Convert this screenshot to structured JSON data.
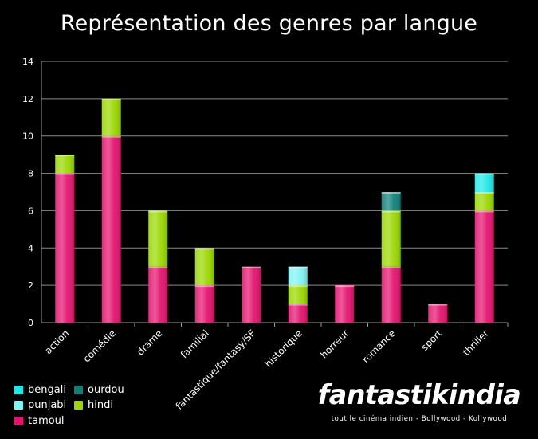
{
  "title": "Représentation des genres par langue",
  "chart_data": {
    "type": "bar",
    "stacked": true,
    "categories": [
      "action",
      "comédie",
      "drame",
      "familial",
      "fantastique/fantasy/SF",
      "historique",
      "horreur",
      "romance",
      "sport",
      "thriller"
    ],
    "series": [
      {
        "name": "tamoul",
        "color": "#e5126f",
        "values": [
          8,
          10,
          3,
          2,
          3,
          1,
          2,
          3,
          1,
          6
        ]
      },
      {
        "name": "hindi",
        "color": "#9ad800",
        "values": [
          1,
          2,
          3,
          2,
          0,
          1,
          0,
          3,
          0,
          1
        ]
      },
      {
        "name": "punjabi",
        "color": "#7ff4f4",
        "values": [
          0,
          0,
          0,
          0,
          0,
          1,
          0,
          0,
          0,
          0
        ]
      },
      {
        "name": "ourdou",
        "color": "#0f8079",
        "values": [
          0,
          0,
          0,
          0,
          0,
          0,
          0,
          1,
          0,
          0
        ]
      },
      {
        "name": "bengali",
        "color": "#1fe8e8",
        "values": [
          0,
          0,
          0,
          0,
          0,
          0,
          0,
          0,
          0,
          1
        ]
      }
    ],
    "ylim": [
      0,
      14
    ],
    "yticks": [
      0,
      2,
      4,
      6,
      8,
      10,
      12,
      14
    ],
    "grid": true,
    "legend_position": "bottom-left",
    "legend_order": [
      "bengali",
      "ourdou",
      "punjabi",
      "hindi",
      "tamoul"
    ]
  },
  "logo": {
    "text": "fantastikindia",
    "tagline": "tout le cinéma indien - Bollywood - Kollywood"
  }
}
